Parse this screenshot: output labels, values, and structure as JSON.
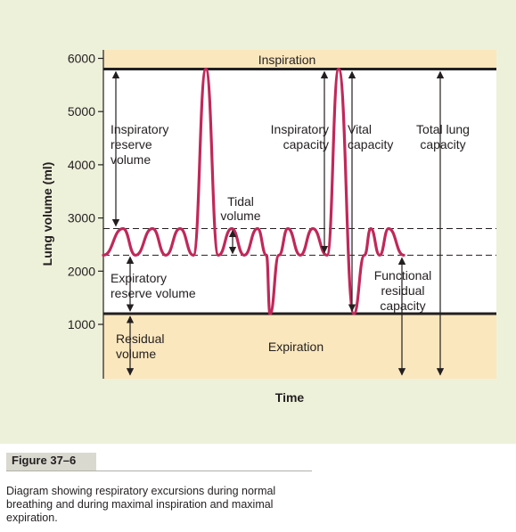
{
  "figure": {
    "label": "Figure 37–6",
    "caption": "Diagram showing respiratory excursions during normal breathing and during maximal inspiration and maximal expiration."
  },
  "colors": {
    "panel_background": "#eef1da",
    "band_fill": "#fbe7bd",
    "trace": "#c0285a",
    "ink": "#231f20"
  },
  "chart_data": {
    "type": "line",
    "xlabel": "Time",
    "ylabel": "Lung volume (ml)",
    "ylim": [
      0,
      6000
    ],
    "yticks": [
      {
        "value": 1000,
        "label": "1000"
      },
      {
        "value": 2000,
        "label": "2000"
      },
      {
        "value": 3000,
        "label": "3000"
      },
      {
        "value": 4000,
        "label": "4000"
      },
      {
        "value": 5000,
        "label": "5000"
      },
      {
        "value": 6000,
        "label": "6000"
      }
    ],
    "reference_levels": {
      "total_lung_capacity": 5800,
      "tidal_peak": 2800,
      "tidal_trough": 2300,
      "residual_volume": 1200
    },
    "bands": {
      "inspiration": "Inspiration",
      "expiration": "Expiration"
    },
    "trace": {
      "volumes": [
        2300,
        2800,
        2300,
        2800,
        2300,
        2800,
        2300,
        5800,
        2300,
        2800,
        2300,
        2800,
        2300,
        1200,
        2300,
        2800,
        2300,
        2800,
        2300,
        5800,
        1200,
        2300,
        2800,
        2300,
        2800,
        2300
      ]
    },
    "annotations": {
      "irv": "Inspiratory\nreserve\nvolume",
      "tidal": "Tidal\nvolume",
      "erv": "Expiratory\nreserve volume",
      "rv": "Residual\nvolume",
      "ic": "Inspiratory\ncapacity",
      "vc": "Vital\ncapacity",
      "tlc": "Total lung\ncapacity",
      "frc": "Functional\nresidual\ncapacity"
    }
  }
}
